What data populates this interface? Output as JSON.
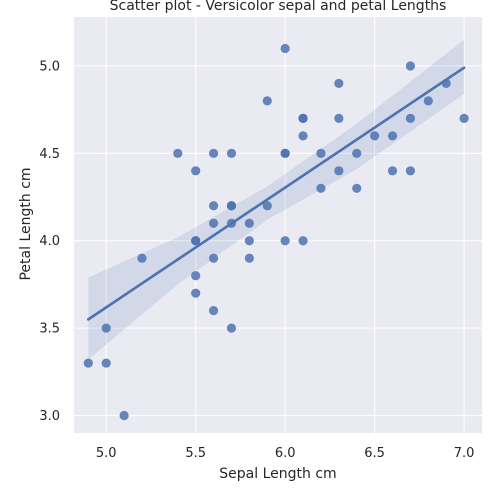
{
  "chart_data": {
    "type": "scatter",
    "title": "Scatter plot - Versicolor sepal and petal Lengths",
    "xlabel": "Sepal Length cm",
    "ylabel": "Petal Length cm",
    "xlim": [
      4.82,
      7.1
    ],
    "ylim": [
      2.9,
      5.28
    ],
    "xticks": [
      5.0,
      5.5,
      6.0,
      6.5,
      7.0
    ],
    "yticks": [
      3.0,
      3.5,
      4.0,
      4.5,
      5.0
    ],
    "x_tick_labels": [
      "5.0",
      "5.5",
      "6.0",
      "6.5",
      "7.0"
    ],
    "y_tick_labels": [
      "3.0",
      "3.5",
      "4.0",
      "4.5",
      "5.0"
    ],
    "grid": true,
    "colors": {
      "background": "#eaeaf2",
      "point": "#4c72b0",
      "line": "#4c72b0",
      "band": "#4c72b0"
    },
    "points": [
      {
        "x": 7.0,
        "y": 4.7
      },
      {
        "x": 6.4,
        "y": 4.5
      },
      {
        "x": 6.9,
        "y": 4.9
      },
      {
        "x": 5.5,
        "y": 4.0
      },
      {
        "x": 6.5,
        "y": 4.6
      },
      {
        "x": 5.7,
        "y": 4.5
      },
      {
        "x": 6.3,
        "y": 4.7
      },
      {
        "x": 4.9,
        "y": 3.3
      },
      {
        "x": 6.6,
        "y": 4.6
      },
      {
        "x": 5.2,
        "y": 3.9
      },
      {
        "x": 5.0,
        "y": 3.5
      },
      {
        "x": 5.9,
        "y": 4.2
      },
      {
        "x": 6.0,
        "y": 4.0
      },
      {
        "x": 6.1,
        "y": 4.7
      },
      {
        "x": 5.6,
        "y": 3.6
      },
      {
        "x": 6.7,
        "y": 4.4
      },
      {
        "x": 5.6,
        "y": 4.5
      },
      {
        "x": 5.8,
        "y": 4.1
      },
      {
        "x": 6.2,
        "y": 4.5
      },
      {
        "x": 5.6,
        "y": 3.9
      },
      {
        "x": 5.9,
        "y": 4.8
      },
      {
        "x": 6.1,
        "y": 4.0
      },
      {
        "x": 6.3,
        "y": 4.9
      },
      {
        "x": 6.1,
        "y": 4.7
      },
      {
        "x": 6.4,
        "y": 4.3
      },
      {
        "x": 6.6,
        "y": 4.4
      },
      {
        "x": 6.8,
        "y": 4.8
      },
      {
        "x": 6.7,
        "y": 5.0
      },
      {
        "x": 6.0,
        "y": 4.5
      },
      {
        "x": 5.7,
        "y": 3.5
      },
      {
        "x": 5.5,
        "y": 3.8
      },
      {
        "x": 5.5,
        "y": 3.7
      },
      {
        "x": 5.8,
        "y": 3.9
      },
      {
        "x": 6.0,
        "y": 5.1
      },
      {
        "x": 5.4,
        "y": 4.5
      },
      {
        "x": 6.0,
        "y": 4.5
      },
      {
        "x": 6.7,
        "y": 4.7
      },
      {
        "x": 6.3,
        "y": 4.4
      },
      {
        "x": 5.6,
        "y": 4.1
      },
      {
        "x": 5.5,
        "y": 4.0
      },
      {
        "x": 5.5,
        "y": 4.4
      },
      {
        "x": 6.1,
        "y": 4.6
      },
      {
        "x": 5.8,
        "y": 4.0
      },
      {
        "x": 5.0,
        "y": 3.3
      },
      {
        "x": 5.6,
        "y": 4.2
      },
      {
        "x": 5.7,
        "y": 4.2
      },
      {
        "x": 5.7,
        "y": 4.2
      },
      {
        "x": 6.2,
        "y": 4.3
      },
      {
        "x": 5.1,
        "y": 3.0
      },
      {
        "x": 5.7,
        "y": 4.1
      }
    ],
    "regression": {
      "x": [
        4.9,
        7.0
      ],
      "y": [
        3.55,
        4.99
      ]
    },
    "confidence_band": {
      "x": [
        4.9,
        5.4,
        5.9,
        6.4,
        7.0
      ],
      "upper": [
        3.79,
        4.02,
        4.31,
        4.67,
        5.15
      ],
      "lower": [
        3.32,
        3.75,
        4.12,
        4.41,
        4.84
      ]
    }
  }
}
